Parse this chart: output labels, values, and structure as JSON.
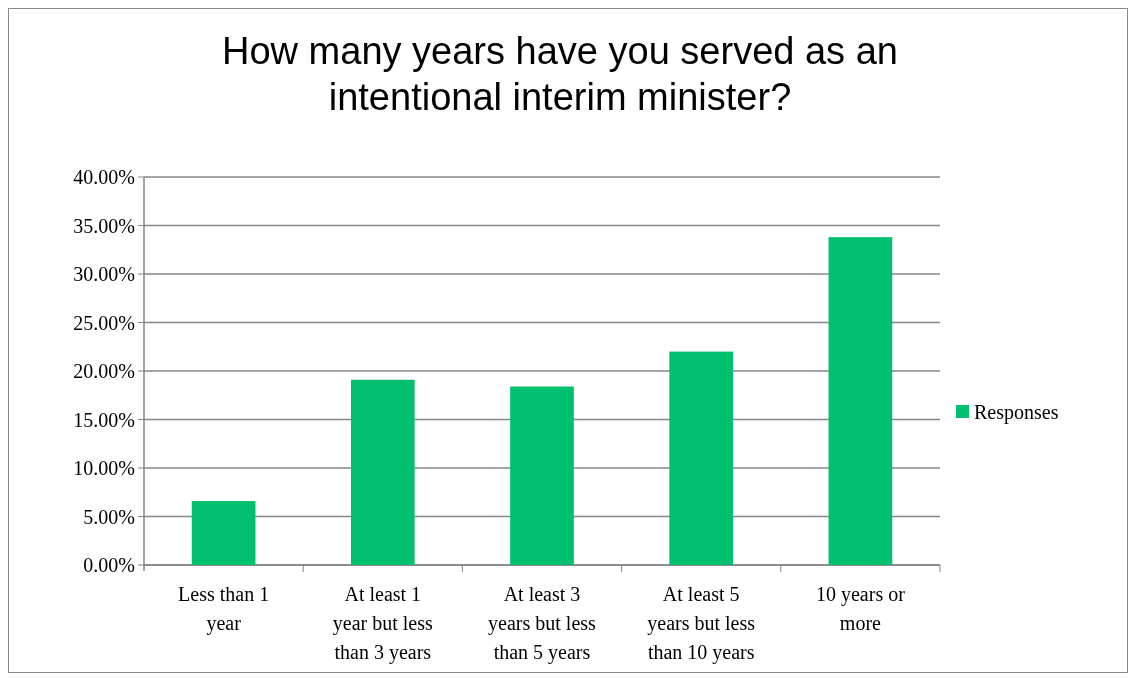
{
  "chart_data": {
    "type": "bar",
    "title": "How many years have you served as an intentional interim minister?",
    "categories": [
      "Less than 1 year",
      "At least 1 year but less than 3 years",
      "At least 3 years but less than 5 years",
      "At least 5 years but less than 10 years",
      "10 years or more"
    ],
    "series": [
      {
        "name": "Responses",
        "color": "#00bf6f",
        "values": [
          6.6,
          19.1,
          18.4,
          22.0,
          33.8
        ]
      }
    ],
    "ylim": [
      0,
      40
    ],
    "yticks": [
      {
        "value": 0,
        "label": "0.00%"
      },
      {
        "value": 5,
        "label": "5.00%"
      },
      {
        "value": 10,
        "label": "10.00%"
      },
      {
        "value": 15,
        "label": "15.00%"
      },
      {
        "value": 20,
        "label": "20.00%"
      },
      {
        "value": 25,
        "label": "25.00%"
      },
      {
        "value": 30,
        "label": "30.00%"
      },
      {
        "value": 35,
        "label": "35.00%"
      },
      {
        "value": 40,
        "label": "40.00%"
      }
    ],
    "grid": "y",
    "legend": "right"
  }
}
